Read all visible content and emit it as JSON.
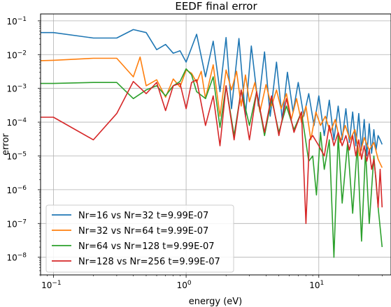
{
  "chart_data": {
    "type": "line",
    "title": "EEDF final error",
    "xlabel": "energy (eV)",
    "ylabel": "error",
    "xscale": "log",
    "yscale": "log",
    "xlim": [
      0.08,
      35
    ],
    "ylim": [
      3e-09,
      0.16
    ],
    "grid": true,
    "legend_position": "lower-left",
    "xticks": [
      {
        "value": 0.1,
        "base": "10",
        "exp": "−1"
      },
      {
        "value": 1,
        "base": "10",
        "exp": "0"
      },
      {
        "value": 10,
        "base": "10",
        "exp": "1"
      }
    ],
    "yticks": [
      {
        "value": 1e-08,
        "base": "10",
        "exp": "−8"
      },
      {
        "value": 1e-07,
        "base": "10",
        "exp": "−7"
      },
      {
        "value": 1e-06,
        "base": "10",
        "exp": "−6"
      },
      {
        "value": 1e-05,
        "base": "10",
        "exp": "−5"
      },
      {
        "value": 0.0001,
        "base": "10",
        "exp": "−4"
      },
      {
        "value": 0.001,
        "base": "10",
        "exp": "−3"
      },
      {
        "value": 0.01,
        "base": "10",
        "exp": "−2"
      },
      {
        "value": 0.1,
        "base": "10",
        "exp": "−1"
      }
    ],
    "series": [
      {
        "name": "Nr=16 vs Nr=32 t=9.99E-07",
        "color": "#1f77b4",
        "x": [
          0.07,
          0.1,
          0.2,
          0.3,
          0.4,
          0.5,
          0.6,
          0.7,
          0.8,
          0.9,
          1.0,
          1.2,
          1.4,
          1.6,
          1.8,
          2.0,
          2.2,
          2.5,
          2.8,
          3.1,
          3.5,
          3.9,
          4.3,
          4.8,
          5.3,
          5.8,
          6.4,
          7.0,
          7.7,
          8.4,
          9.2,
          10,
          11,
          12,
          13,
          14,
          15,
          16,
          17,
          18,
          19,
          20,
          21,
          22,
          23,
          24,
          25,
          26,
          27,
          28,
          29,
          30
        ],
        "y": [
          0.045,
          0.045,
          0.031,
          0.031,
          0.055,
          0.045,
          0.014,
          0.02,
          0.011,
          0.013,
          0.006,
          0.04,
          0.0022,
          0.025,
          0.0008,
          0.032,
          0.00025,
          0.03,
          0.00015,
          0.018,
          0.0003,
          0.012,
          0.00015,
          0.006,
          0.00012,
          0.003,
          0.0002,
          0.0015,
          0.00015,
          0.0007,
          8e-05,
          0.0006,
          4e-05,
          0.00045,
          3e-05,
          0.0003,
          3e-05,
          0.00025,
          2.5e-05,
          0.0002,
          2e-05,
          0.00018,
          1.5e-05,
          0.00012,
          1e-05,
          9e-05,
          1.2e-05,
          6e-05,
          1.5e-05,
          4e-05,
          3e-05,
          2.2e-05
        ]
      },
      {
        "name": "Nr=32 vs Nr=64 t=9.99E-07",
        "color": "#ff7f0e",
        "x": [
          0.07,
          0.1,
          0.2,
          0.3,
          0.4,
          0.45,
          0.5,
          0.6,
          0.7,
          0.8,
          0.9,
          1.0,
          1.1,
          1.2,
          1.3,
          1.4,
          1.6,
          1.8,
          2.0,
          2.2,
          2.4,
          2.6,
          2.8,
          3.0,
          3.3,
          3.6,
          4.0,
          4.4,
          4.8,
          5.2,
          5.7,
          6.2,
          6.8,
          7.4,
          8.0,
          8.7,
          9.5,
          10.3,
          11.2,
          12.2,
          13.3,
          14.5,
          15.8,
          17.2,
          18.7,
          20.3,
          22,
          24,
          26,
          28,
          30
        ],
        "y": [
          0.0065,
          0.0068,
          0.0078,
          0.0078,
          0.0022,
          0.0085,
          0.0012,
          0.0018,
          0.00055,
          0.0019,
          0.0011,
          0.0035,
          0.0028,
          0.0015,
          0.0032,
          0.0005,
          0.005,
          0.00015,
          0.0035,
          0.0009,
          0.0032,
          0.0003,
          0.0025,
          0.0004,
          0.0015,
          0.0002,
          0.0013,
          0.0003,
          0.0009,
          0.00025,
          0.0007,
          0.00012,
          0.0005,
          0.0001,
          0.0003,
          3e-05,
          0.0002,
          8e-05,
          0.00015,
          5e-05,
          0.00012,
          2.5e-05,
          8e-05,
          3e-05,
          6e-05,
          1e-05,
          3.5e-05,
          1.5e-05,
          2.5e-05,
          8e-06,
          4.5e-06
        ]
      },
      {
        "name": "Nr=64 vs Nr=128 t=9.99E-07",
        "color": "#2ca02c",
        "x": [
          0.07,
          0.1,
          0.2,
          0.3,
          0.4,
          0.5,
          0.6,
          0.7,
          0.8,
          0.9,
          1.0,
          1.1,
          1.2,
          1.4,
          1.6,
          1.8,
          2.0,
          2.3,
          2.6,
          3.0,
          3.4,
          3.9,
          4.4,
          5.0,
          5.7,
          6.5,
          7.4,
          8.4,
          9.0,
          9.6,
          10.3,
          11,
          12,
          13,
          14,
          15,
          16.5,
          18,
          19.5,
          21,
          22.5,
          24,
          26,
          28,
          30
        ],
        "y": [
          0.0014,
          0.0014,
          0.0015,
          0.0015,
          0.0005,
          0.0009,
          0.0012,
          0.0006,
          0.0012,
          0.0016,
          0.0038,
          0.0025,
          0.0008,
          0.0005,
          0.0022,
          7e-05,
          0.0012,
          4e-05,
          0.0009,
          8e-05,
          0.0008,
          4e-05,
          0.0005,
          5e-05,
          0.0003,
          6e-05,
          0.0002,
          7e-06,
          1e-05,
          7e-07,
          5e-05,
          4e-06,
          3e-05,
          1e-08,
          4e-05,
          4e-07,
          2.5e-05,
          2e-07,
          2e-05,
          3e-08,
          1.5e-05,
          1e-07,
          1e-05,
          3e-07,
          2e-08
        ]
      },
      {
        "name": "Nr=128 vs Nr=256 t=9.99E-07",
        "color": "#d62728",
        "x": [
          0.07,
          0.1,
          0.2,
          0.3,
          0.4,
          0.5,
          0.6,
          0.7,
          0.8,
          0.9,
          1.0,
          1.1,
          1.2,
          1.4,
          1.6,
          1.8,
          2.0,
          2.3,
          2.6,
          3.0,
          3.4,
          3.9,
          4.4,
          5.0,
          5.7,
          6.5,
          7.4,
          8.0,
          8.5,
          9.0,
          10,
          11,
          12,
          13,
          14,
          15,
          16,
          17,
          18,
          19,
          20,
          21,
          22,
          23,
          24,
          25,
          26,
          27,
          28,
          29,
          30
        ],
        "y": [
          0.00014,
          0.00014,
          3e-05,
          0.00018,
          0.0016,
          0.0007,
          0.0015,
          0.00022,
          0.0012,
          0.0014,
          0.00025,
          0.0015,
          0.0018,
          8e-05,
          0.0006,
          2e-05,
          0.0012,
          3e-05,
          0.0009,
          3e-05,
          0.0008,
          5e-05,
          0.0006,
          4e-05,
          0.0005,
          5e-05,
          0.0002,
          1e-07,
          3e-05,
          4e-05,
          2e-05,
          1e-05,
          8e-05,
          2e-05,
          5e-05,
          2e-05,
          4e-05,
          1.5e-05,
          4e-05,
          1e-05,
          3e-05,
          8e-06,
          2e-05,
          7e-06,
          1.5e-05,
          4e-06,
          8e-06,
          2e-06,
          3e-07,
          4e-06,
          3e-07
        ]
      }
    ]
  }
}
